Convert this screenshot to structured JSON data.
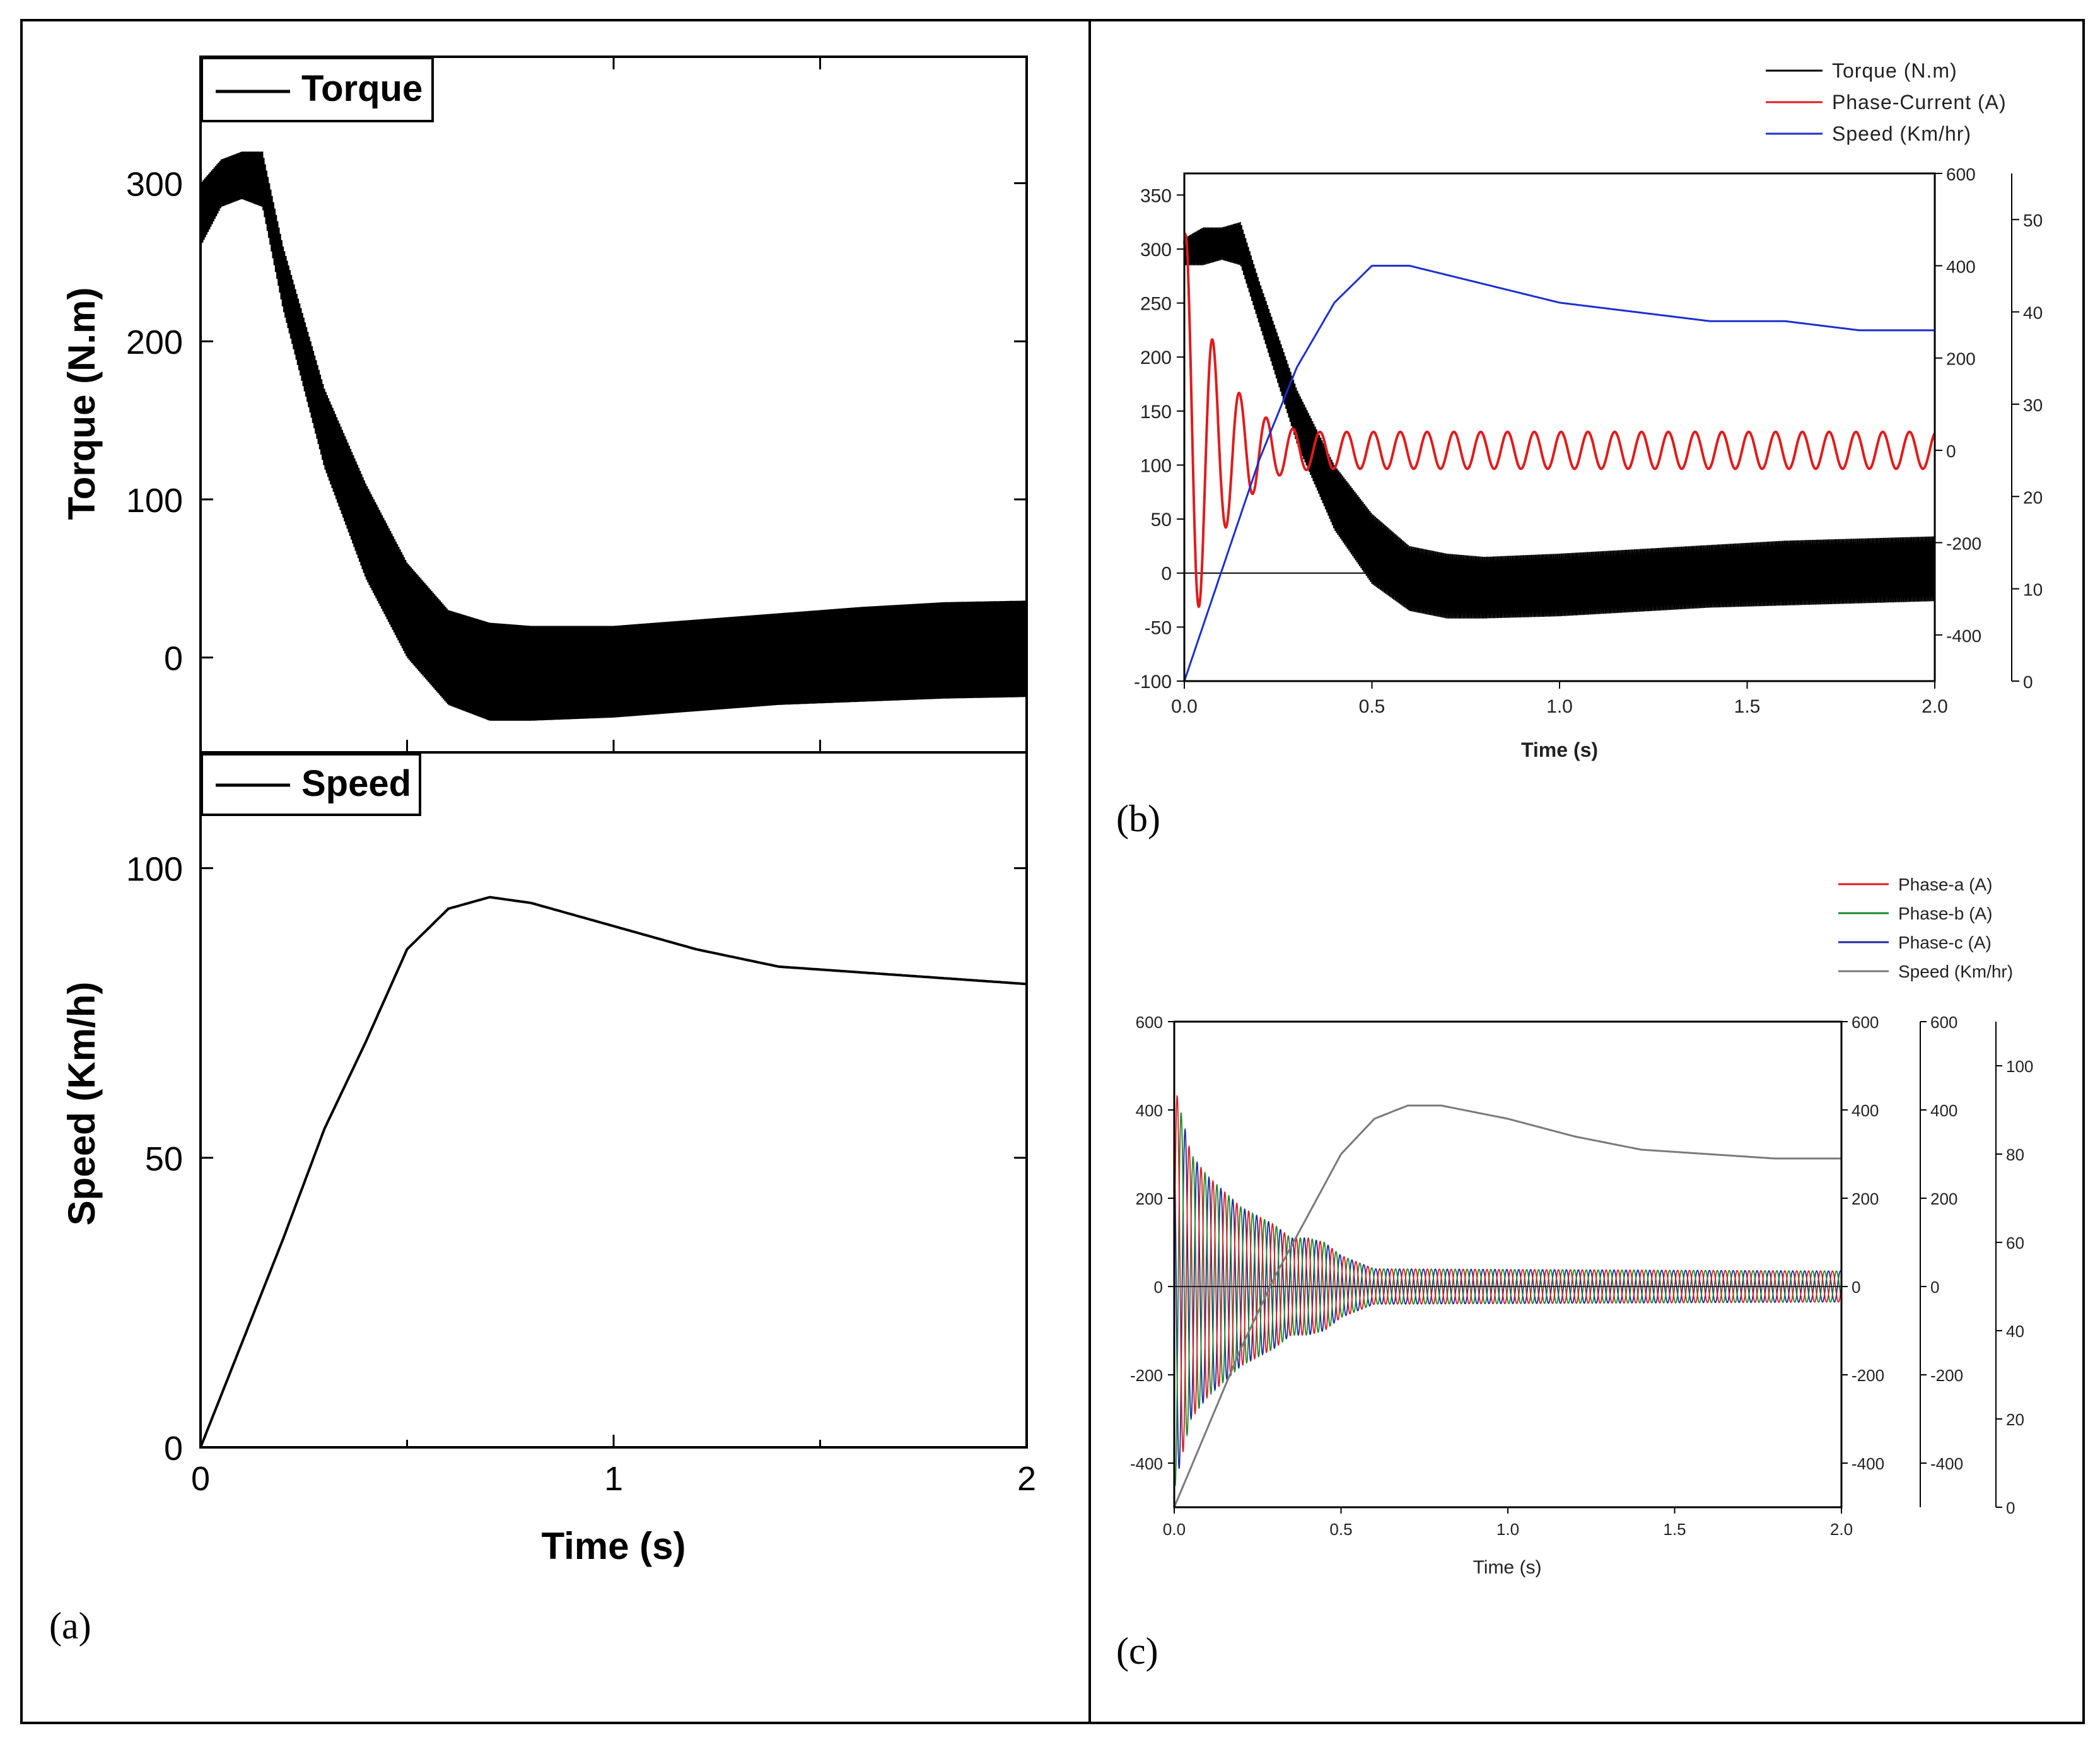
{
  "colors": {
    "torque": "#000000",
    "phase_current": "#e01b1b",
    "speed_blue": "#1c2fd0",
    "phase_a": "#e01b1b",
    "phase_b": "#1b8a2a",
    "phase_c": "#1c2a9c",
    "speed_gray": "#7a7a7a"
  },
  "panel_labels": {
    "a": "(a)",
    "b": "(b)",
    "c": "(c)"
  },
  "chart_data": [
    {
      "id": "a-top",
      "type": "line",
      "title": "",
      "legend": [
        "Torque"
      ],
      "xlabel": "",
      "ylabel": "Torque (N.m)",
      "xlim": [
        0,
        2
      ],
      "ylim": [
        -60,
        380
      ],
      "yticks": [
        0,
        100,
        200,
        300
      ],
      "x": [
        0,
        0.05,
        0.1,
        0.15,
        0.2,
        0.3,
        0.4,
        0.5,
        0.6,
        0.7,
        0.8,
        1.0,
        1.2,
        1.4,
        1.6,
        1.8,
        2.0
      ],
      "series": [
        {
          "name": "Torque (envelope max)",
          "values": [
            300,
            315,
            320,
            320,
            260,
            170,
            110,
            60,
            30,
            22,
            20,
            20,
            24,
            28,
            32,
            35,
            36
          ]
        },
        {
          "name": "Torque (envelope min)",
          "values": [
            260,
            285,
            290,
            285,
            220,
            120,
            50,
            0,
            -30,
            -40,
            -40,
            -38,
            -34,
            -30,
            -28,
            -26,
            -25
          ]
        }
      ]
    },
    {
      "id": "a-bottom",
      "type": "line",
      "title": "",
      "legend": [
        "Speed"
      ],
      "xlabel": "Time (s)",
      "ylabel": "Speed (Km/h)",
      "xlim": [
        0,
        2
      ],
      "ylim": [
        0,
        120
      ],
      "xticks": [
        0,
        1,
        2
      ],
      "yticks": [
        0,
        50,
        100
      ],
      "series": [
        {
          "name": "Speed",
          "x": [
            0,
            0.1,
            0.2,
            0.3,
            0.4,
            0.5,
            0.6,
            0.7,
            0.8,
            1.0,
            1.2,
            1.4,
            1.6,
            1.8,
            2.0
          ],
          "values": [
            0,
            18,
            36,
            55,
            70,
            86,
            93,
            95,
            94,
            90,
            86,
            83,
            82,
            81,
            80
          ]
        }
      ]
    },
    {
      "id": "b",
      "type": "line",
      "title": "",
      "legend": [
        "Torque (N.m)",
        "Phase-Current (A)",
        "Speed (Km/hr)"
      ],
      "xlabel": "Time (s)",
      "xlim": [
        0,
        2
      ],
      "xticks": [
        "0.0",
        "0.5",
        "1.0",
        "1.5",
        "2.0"
      ],
      "axes": {
        "left": {
          "range": [
            -100,
            370
          ],
          "ticks": [
            -100,
            -50,
            0,
            50,
            100,
            150,
            200,
            250,
            300,
            350
          ]
        },
        "right1": {
          "range": [
            -500,
            600
          ],
          "ticks": [
            -400,
            -200,
            0,
            200,
            400,
            600
          ]
        },
        "right2": {
          "range": [
            0,
            55
          ],
          "ticks": [
            0,
            10,
            20,
            30,
            40,
            50
          ]
        }
      },
      "series": [
        {
          "name": "Torque (N.m) max",
          "axis": "left",
          "x": [
            0,
            0.05,
            0.1,
            0.15,
            0.2,
            0.3,
            0.4,
            0.5,
            0.6,
            0.7,
            0.8,
            1.0,
            1.2,
            1.4,
            1.6,
            1.8,
            2.0
          ],
          "values": [
            310,
            320,
            320,
            325,
            270,
            170,
            100,
            55,
            25,
            18,
            15,
            18,
            22,
            26,
            30,
            32,
            34
          ]
        },
        {
          "name": "Torque (N.m) min",
          "axis": "left",
          "x": [
            0,
            0.05,
            0.1,
            0.15,
            0.2,
            0.3,
            0.4,
            0.5,
            0.6,
            0.7,
            0.8,
            1.0,
            1.2,
            1.4,
            1.6,
            1.8,
            2.0
          ],
          "values": [
            285,
            285,
            290,
            285,
            230,
            120,
            40,
            -10,
            -35,
            -42,
            -42,
            -40,
            -36,
            -32,
            -30,
            -28,
            -26
          ]
        },
        {
          "name": "Phase-Current (A) amplitude",
          "axis": "right1",
          "x": [
            0,
            0.05,
            0.1,
            0.15,
            0.2,
            0.25,
            0.3,
            0.35,
            0.4,
            2.0
          ],
          "values": [
            480,
            300,
            180,
            120,
            80,
            55,
            45,
            40,
            40,
            40
          ],
          "center": 0,
          "frequency_hz": 14
        },
        {
          "name": "Speed (Km/hr)",
          "axis": "right2",
          "x": [
            0,
            0.1,
            0.2,
            0.3,
            0.4,
            0.5,
            0.6,
            0.7,
            0.8,
            1.0,
            1.2,
            1.4,
            1.6,
            1.8,
            2.0
          ],
          "values": [
            0,
            12,
            24,
            34,
            41,
            45,
            45,
            44,
            43,
            41,
            40,
            39,
            39,
            38,
            38
          ]
        }
      ]
    },
    {
      "id": "c",
      "type": "line",
      "title": "",
      "legend": [
        "Phase-a (A)",
        "Phase-b (A)",
        "Phase-c (A)",
        "Speed (Km/hr)"
      ],
      "xlabel": "Time (s)",
      "xlim": [
        0,
        2
      ],
      "xticks": [
        "0.0",
        "0.5",
        "1.0",
        "1.5",
        "2.0"
      ],
      "axes": {
        "left": {
          "range": [
            -500,
            600
          ],
          "ticks": [
            -400,
            -200,
            0,
            200,
            400,
            600
          ]
        },
        "right1": {
          "range": [
            -500,
            600
          ],
          "ticks": [
            -400,
            -200,
            0,
            200,
            400,
            600
          ]
        },
        "right2": {
          "range": [
            -500,
            600
          ],
          "ticks": [
            -400,
            -200,
            0,
            200,
            400,
            600
          ]
        },
        "right3": {
          "range": [
            0,
            110
          ],
          "ticks": [
            0,
            20,
            40,
            60,
            80,
            100
          ]
        }
      },
      "series": [
        {
          "name": "Phase currents amplitude",
          "axis": "left",
          "x": [
            0,
            0.05,
            0.1,
            0.2,
            0.3,
            0.35,
            0.4,
            0.45,
            0.5,
            0.6,
            2.0
          ],
          "values": [
            460,
            300,
            250,
            180,
            140,
            110,
            110,
            100,
            70,
            40,
            35
          ],
          "frequency_hz": 28
        },
        {
          "name": "Speed (Km/hr)",
          "axis": "right3",
          "x": [
            0,
            0.1,
            0.2,
            0.3,
            0.4,
            0.5,
            0.6,
            0.7,
            0.8,
            1.0,
            1.2,
            1.4,
            1.6,
            1.8,
            2.0
          ],
          "values": [
            0,
            18,
            36,
            52,
            66,
            80,
            88,
            91,
            91,
            88,
            84,
            81,
            80,
            79,
            79
          ]
        }
      ]
    }
  ]
}
